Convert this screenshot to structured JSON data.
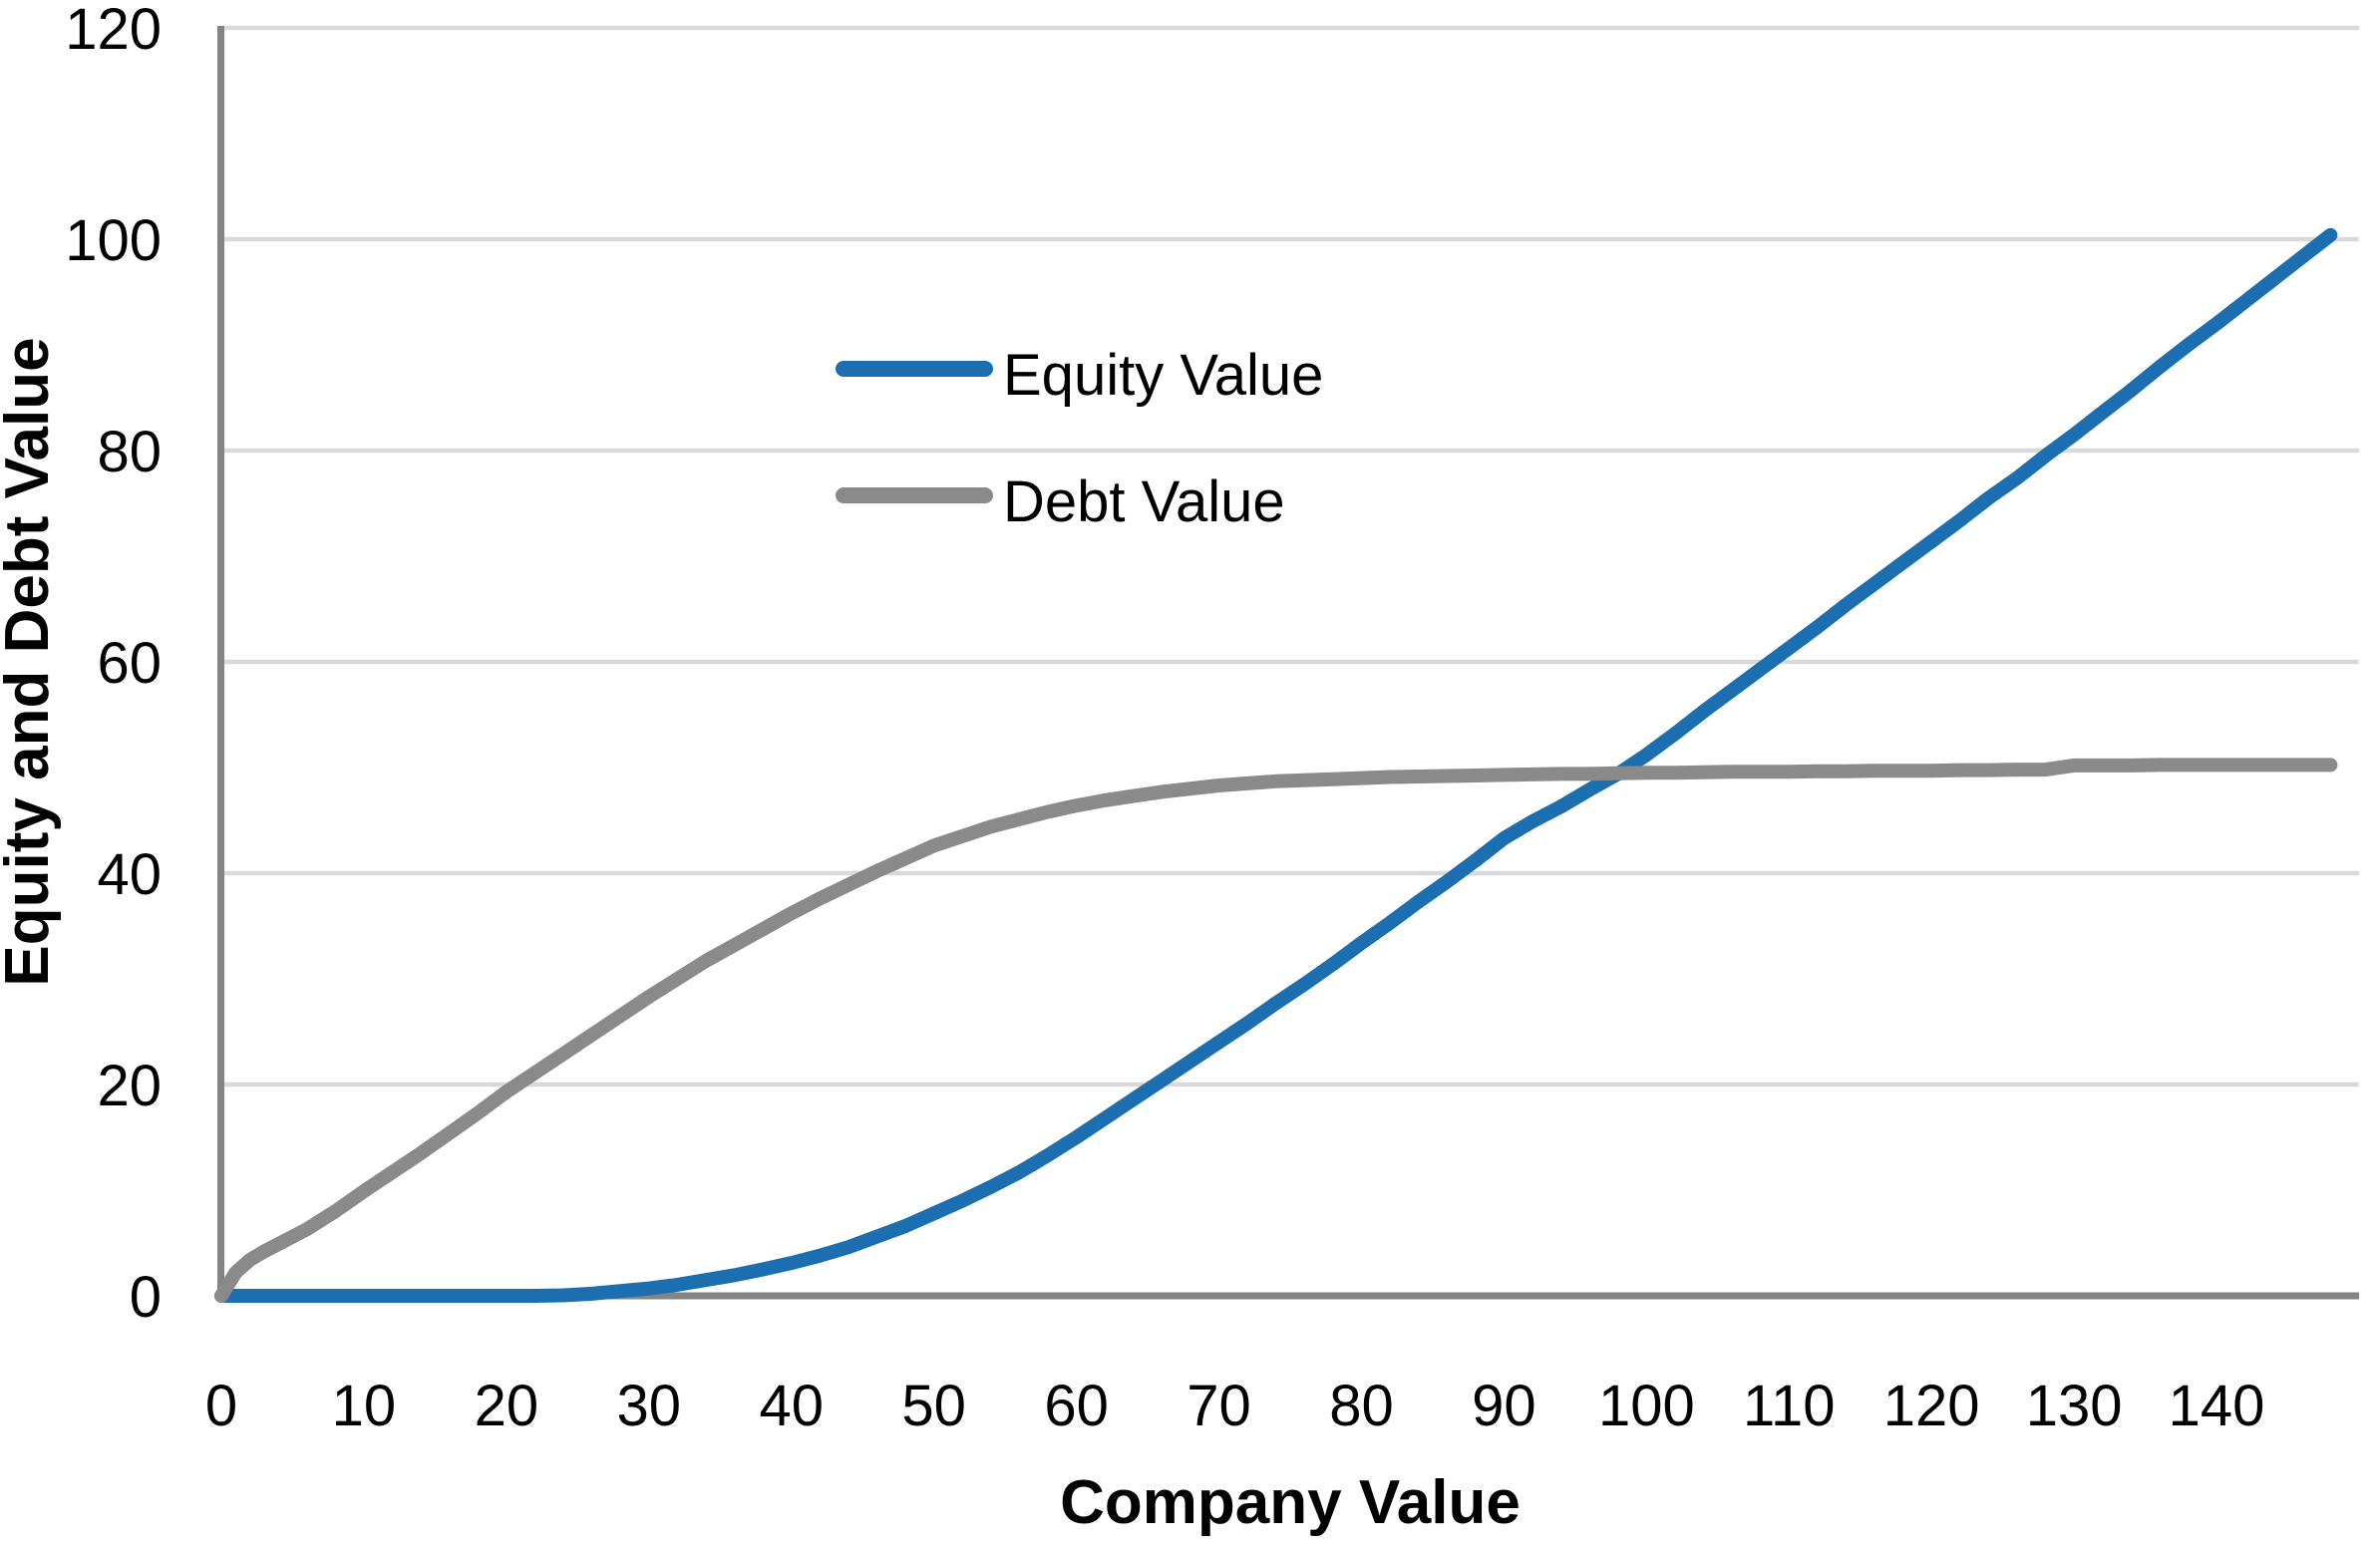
{
  "chart_data": {
    "type": "line",
    "title": "",
    "xlabel": "Company Value",
    "ylabel": "Equity and Debt Value",
    "xlim": [
      0,
      150
    ],
    "ylim": [
      0,
      120
    ],
    "x_ticks": [
      0,
      10,
      20,
      30,
      40,
      50,
      60,
      70,
      80,
      90,
      100,
      110,
      120,
      130,
      140
    ],
    "y_ticks": [
      0,
      20,
      40,
      60,
      80,
      100,
      120
    ],
    "grid": "horizontal-only",
    "legend_position": "inside-upper-middle-left",
    "x": [
      0,
      1,
      2,
      3,
      4,
      6,
      8,
      10,
      12,
      14,
      16,
      18,
      20,
      22,
      24,
      26,
      28,
      30,
      32,
      34,
      36,
      38,
      40,
      42,
      44,
      46,
      48,
      50,
      52,
      54,
      56,
      58,
      60,
      62,
      64,
      66,
      68,
      70,
      72,
      74,
      76,
      78,
      80,
      82,
      84,
      86,
      88,
      90,
      92,
      94,
      96,
      98,
      100,
      102,
      104,
      106,
      108,
      110,
      112,
      114,
      116,
      118,
      120,
      122,
      124,
      126,
      128,
      130,
      132,
      134,
      136,
      138,
      140,
      142,
      144,
      146,
      148
    ],
    "series": [
      {
        "name": "Equity Value",
        "color": "#1B6EAF",
        "values": [
          0,
          0,
          0,
          0,
          0,
          0,
          0,
          0,
          0,
          0,
          0,
          0,
          0,
          0,
          0.05,
          0.2,
          0.45,
          0.7,
          1.05,
          1.5,
          1.95,
          2.5,
          3.1,
          3.8,
          4.6,
          5.6,
          6.6,
          7.8,
          9.0,
          10.3,
          11.7,
          13.3,
          15.0,
          16.8,
          18.6,
          20.4,
          22.2,
          24.0,
          25.8,
          27.7,
          29.5,
          31.4,
          33.4,
          35.3,
          37.3,
          39.2,
          41.2,
          43.3,
          44.9,
          46.3,
          47.9,
          49.4,
          51.2,
          53.2,
          55.3,
          57.3,
          59.3,
          61.3,
          63.3,
          65.4,
          67.4,
          69.4,
          71.4,
          73.4,
          75.5,
          77.4,
          79.5,
          81.5,
          83.6,
          85.7,
          87.9,
          90.0,
          92.0,
          94.1,
          96.2,
          98.3,
          100.4
        ]
      },
      {
        "name": "Debt Value",
        "color": "#8A8A8A",
        "values": [
          0,
          2.2,
          3.4,
          4.2,
          4.9,
          6.3,
          8.0,
          9.9,
          11.7,
          13.5,
          15.4,
          17.3,
          19.3,
          21.1,
          22.9,
          24.7,
          26.5,
          28.3,
          30.0,
          31.7,
          33.2,
          34.7,
          36.2,
          37.6,
          38.9,
          40.2,
          41.4,
          42.6,
          43.5,
          44.4,
          45.1,
          45.8,
          46.4,
          46.9,
          47.3,
          47.7,
          48.0,
          48.3,
          48.5,
          48.7,
          48.8,
          48.9,
          49.0,
          49.1,
          49.15,
          49.2,
          49.25,
          49.3,
          49.35,
          49.4,
          49.4,
          49.45,
          49.5,
          49.5,
          49.55,
          49.6,
          49.6,
          49.6,
          49.65,
          49.65,
          49.7,
          49.7,
          49.7,
          49.75,
          49.75,
          49.8,
          49.8,
          50.2,
          50.2,
          50.2,
          50.25,
          50.25,
          50.25,
          50.25,
          50.25,
          50.25,
          50.25
        ]
      }
    ]
  },
  "styles": {
    "gridline_color": "#D9D9D9",
    "axis_line_color": "#848484",
    "tick_label_color": "#000000",
    "equity_line_color": "#1B6EAF",
    "debt_line_color": "#8A8A8A",
    "background_color": "#FFFFFF"
  }
}
